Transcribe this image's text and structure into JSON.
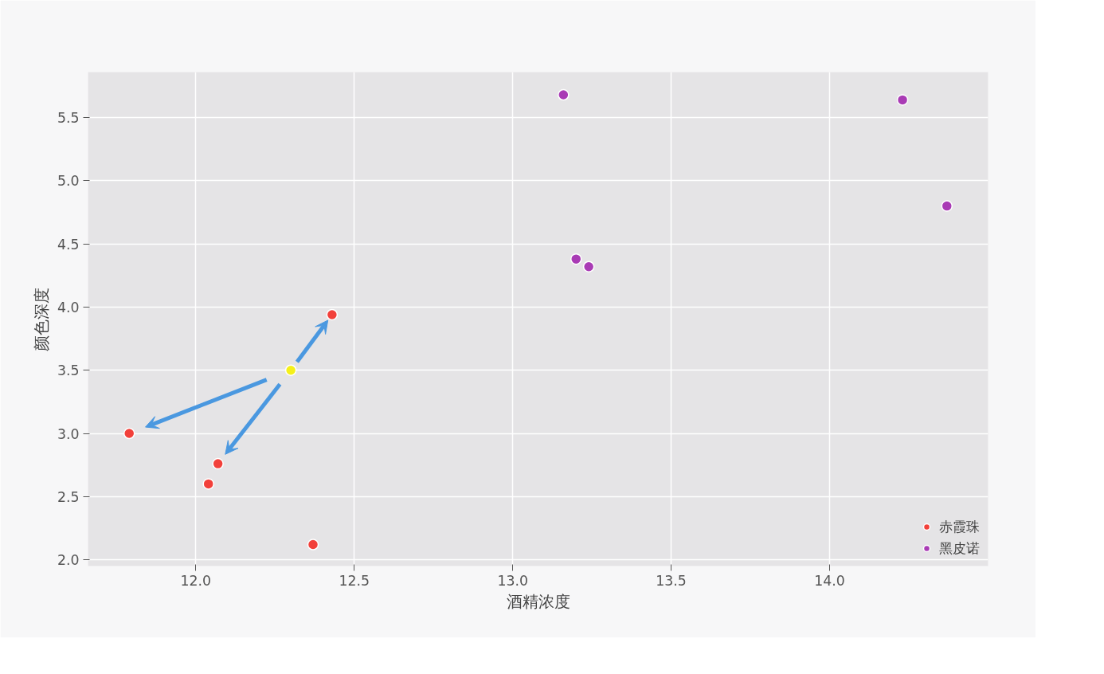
{
  "chart_data": {
    "type": "scatter",
    "xlabel": "酒精浓度",
    "ylabel": "颜色深度",
    "series": [
      {
        "name": "赤霞珠",
        "color": "#f2403a",
        "x": [
          11.79,
          12.07,
          12.04,
          12.37,
          12.43
        ],
        "values": [
          3.0,
          2.76,
          2.6,
          2.12,
          3.94
        ]
      },
      {
        "name": "黑皮诺",
        "color": "#a93bb5",
        "x": [
          13.16,
          13.2,
          13.24,
          14.23,
          14.37
        ],
        "values": [
          5.68,
          4.38,
          4.32,
          5.64,
          4.8
        ]
      },
      {
        "color": "#f5f01a",
        "x": [
          12.3
        ],
        "values": [
          3.5
        ]
      }
    ],
    "xlim": [
      11.66,
      14.5
    ],
    "ylim": [
      1.95,
      5.86
    ],
    "xticks": [
      {
        "value": 12.0,
        "label": "12.0"
      },
      {
        "value": 12.5,
        "label": "12.5"
      },
      {
        "value": 13.0,
        "label": "13.0"
      },
      {
        "value": 13.5,
        "label": "13.5"
      },
      {
        "value": 14.0,
        "label": "14.0"
      }
    ],
    "yticks": [
      {
        "value": 2.0,
        "label": "2.0"
      },
      {
        "value": 2.5,
        "label": "2.5"
      },
      {
        "value": 3.0,
        "label": "3.0"
      },
      {
        "value": 3.5,
        "label": "3.5"
      },
      {
        "value": 4.0,
        "label": "4.0"
      },
      {
        "value": 4.5,
        "label": "4.5"
      },
      {
        "value": 5.0,
        "label": "5.0"
      },
      {
        "value": 5.5,
        "label": "5.5"
      }
    ],
    "grid": true,
    "legend": "bottom right",
    "marker": "circle"
  }
}
